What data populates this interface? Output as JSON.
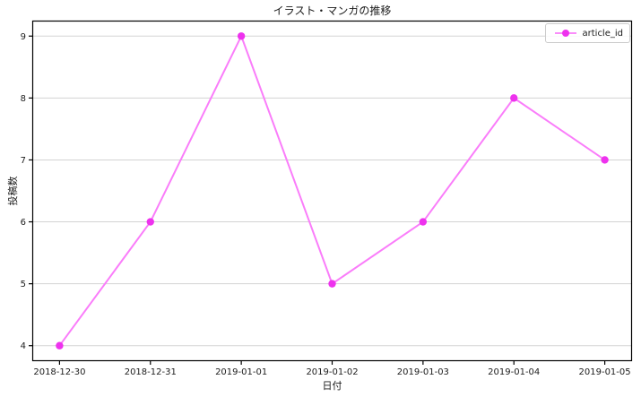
{
  "window": {
    "title": "イラスト・マンガの推移"
  },
  "chart_data": {
    "type": "line",
    "title": "イラスト・マンガの推移",
    "xlabel": "日付",
    "ylabel": "投稿数",
    "categories": [
      "2018-12-30",
      "2018-12-31",
      "2019-01-01",
      "2019-01-02",
      "2019-01-03",
      "2019-01-04",
      "2019-01-05"
    ],
    "series": [
      {
        "name": "article_id",
        "values": [
          4,
          6,
          9,
          5,
          6,
          8,
          7
        ]
      }
    ],
    "y_ticks": [
      4,
      5,
      6,
      7,
      8,
      9
    ],
    "ylim": [
      3.75,
      9.25
    ],
    "x_pad": 0.3,
    "grid": "horizontal",
    "legend_position": "upper-right",
    "colors": {
      "line": "#fa7dfa",
      "marker": "#ee32ee",
      "grid": "#d3d3d3",
      "frame": "#000000",
      "tick_text": "#202020"
    }
  }
}
